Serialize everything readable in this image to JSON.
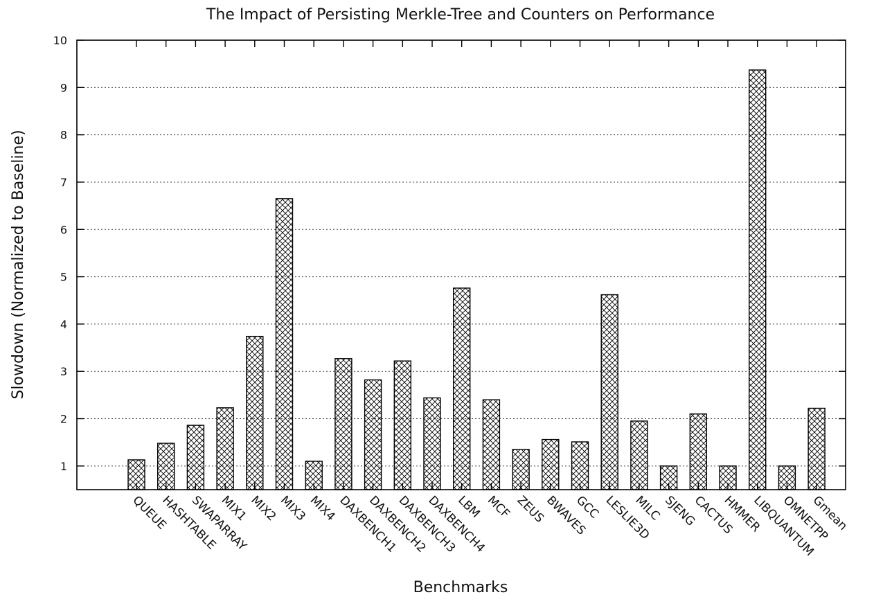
{
  "chart_data": {
    "type": "bar",
    "title": "The Impact of Persisting Merkle-Tree and Counters on Performance",
    "xlabel": "Benchmarks",
    "ylabel": "Slowdown (Normalized to Baseline)",
    "ylim": [
      0.5,
      10
    ],
    "yticks": [
      1,
      2,
      3,
      4,
      5,
      6,
      7,
      8,
      9,
      10
    ],
    "grid": "horizontal dotted",
    "fill_pattern": "crosshatch",
    "categories": [
      "QUEUE",
      "HASHTABLE",
      "SWAPARRAY",
      "MIX1",
      "MIX2",
      "MIX3",
      "MIX4",
      "DAXBENCH1",
      "DAXBENCH2",
      "DAXBENCH3",
      "DAXBENCH4",
      "LBM",
      "MCF",
      "ZEUS",
      "BWAVES",
      "GCC",
      "LESLIE3D",
      "MILC",
      "SJENG",
      "CACTUS",
      "HMMER",
      "LIBQUANTUM",
      "OMNETPP",
      "Gmean"
    ],
    "values": [
      1.13,
      1.48,
      1.86,
      2.23,
      3.74,
      6.65,
      1.1,
      3.27,
      2.82,
      3.22,
      2.44,
      4.76,
      2.4,
      1.35,
      1.56,
      1.51,
      4.62,
      1.95,
      1.0,
      2.1,
      1.0,
      9.37,
      1.0,
      2.22
    ]
  }
}
